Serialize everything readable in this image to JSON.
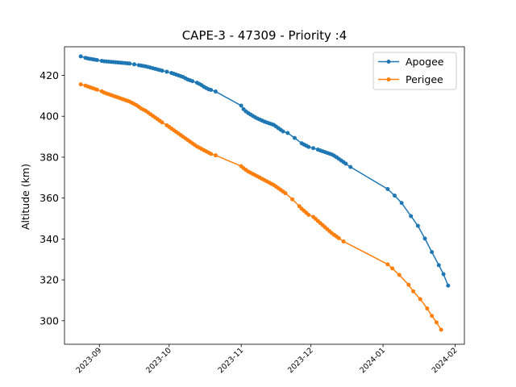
{
  "chart_data": {
    "type": "line",
    "title": "CAPE-3 - 47309 - Priority :4",
    "xlabel": "",
    "ylabel": "Altitude (km)",
    "xlim": [
      "2023-08-17",
      "2024-02-05"
    ],
    "ylim": [
      288.5,
      434
    ],
    "x_ticks": [
      "2023-09",
      "2023-10",
      "2023-11",
      "2023-12",
      "2024-01",
      "2024-02"
    ],
    "y_ticks": [
      300,
      320,
      340,
      360,
      380,
      400,
      420
    ],
    "grid": false,
    "legend_position": "upper right",
    "series": [
      {
        "name": "Apogee",
        "color": "#1f77b4",
        "points": [
          [
            "2023-08-24",
            429.3
          ],
          [
            "2023-08-26",
            428.6
          ],
          [
            "2023-08-27",
            428.3
          ],
          [
            "2023-08-28",
            428.1
          ],
          [
            "2023-08-29",
            427.9
          ],
          [
            "2023-08-30",
            427.7
          ],
          [
            "2023-08-31",
            427.5
          ],
          [
            "2023-09-02",
            427.1
          ],
          [
            "2023-09-03",
            426.9
          ],
          [
            "2023-09-04",
            426.8
          ],
          [
            "2023-09-05",
            426.7
          ],
          [
            "2023-09-06",
            426.6
          ],
          [
            "2023-09-07",
            426.5
          ],
          [
            "2023-09-08",
            426.4
          ],
          [
            "2023-09-09",
            426.3
          ],
          [
            "2023-09-10",
            426.2
          ],
          [
            "2023-09-11",
            426.1
          ],
          [
            "2023-09-12",
            426.0
          ],
          [
            "2023-09-13",
            425.9
          ],
          [
            "2023-09-14",
            425.8
          ],
          [
            "2023-09-16",
            425.4
          ],
          [
            "2023-09-18",
            425.0
          ],
          [
            "2023-09-19",
            424.8
          ],
          [
            "2023-09-20",
            424.6
          ],
          [
            "2023-09-21",
            424.4
          ],
          [
            "2023-09-22",
            424.1
          ],
          [
            "2023-09-23",
            423.8
          ],
          [
            "2023-09-24",
            423.5
          ],
          [
            "2023-09-25",
            423.2
          ],
          [
            "2023-09-26",
            422.9
          ],
          [
            "2023-09-27",
            422.6
          ],
          [
            "2023-09-28",
            422.3
          ],
          [
            "2023-09-30",
            421.8
          ],
          [
            "2023-10-02",
            421.2
          ],
          [
            "2023-10-03",
            420.8
          ],
          [
            "2023-10-04",
            420.4
          ],
          [
            "2023-10-05",
            420.0
          ],
          [
            "2023-10-06",
            419.6
          ],
          [
            "2023-10-07",
            419.2
          ],
          [
            "2023-10-08",
            418.6
          ],
          [
            "2023-10-09",
            418.0
          ],
          [
            "2023-10-10",
            417.6
          ],
          [
            "2023-10-11",
            417.2
          ],
          [
            "2023-10-13",
            416.4
          ],
          [
            "2023-10-14",
            415.8
          ],
          [
            "2023-10-15",
            415.2
          ],
          [
            "2023-10-16",
            414.4
          ],
          [
            "2023-10-17",
            413.8
          ],
          [
            "2023-10-18",
            413.2
          ],
          [
            "2023-10-19",
            412.9
          ],
          [
            "2023-10-21",
            412.1
          ],
          [
            "2023-11-01",
            405.2
          ],
          [
            "2023-11-02",
            403.5
          ],
          [
            "2023-11-03",
            402.4
          ],
          [
            "2023-11-04",
            401.6
          ],
          [
            "2023-11-05",
            400.9
          ],
          [
            "2023-11-06",
            400.2
          ],
          [
            "2023-11-07",
            399.5
          ],
          [
            "2023-11-08",
            398.9
          ],
          [
            "2023-11-09",
            398.4
          ],
          [
            "2023-11-10",
            397.9
          ],
          [
            "2023-11-11",
            397.4
          ],
          [
            "2023-11-12",
            397.0
          ],
          [
            "2023-11-13",
            396.6
          ],
          [
            "2023-11-14",
            396.2
          ],
          [
            "2023-11-15",
            395.8
          ],
          [
            "2023-11-16",
            395.0
          ],
          [
            "2023-11-17",
            394.2
          ],
          [
            "2023-11-18",
            393.4
          ],
          [
            "2023-11-19",
            392.6
          ],
          [
            "2023-11-21",
            391.8
          ],
          [
            "2023-11-24",
            389.4
          ],
          [
            "2023-11-27",
            386.8
          ],
          [
            "2023-11-28",
            386.2
          ],
          [
            "2023-11-29",
            385.6
          ],
          [
            "2023-11-30",
            385.0
          ],
          [
            "2023-12-02",
            384.4
          ],
          [
            "2023-12-04",
            383.7
          ],
          [
            "2023-12-05",
            383.3
          ],
          [
            "2023-12-06",
            382.9
          ],
          [
            "2023-12-07",
            382.5
          ],
          [
            "2023-12-08",
            382.1
          ],
          [
            "2023-12-09",
            381.7
          ],
          [
            "2023-12-10",
            381.3
          ],
          [
            "2023-12-11",
            380.7
          ],
          [
            "2023-12-12",
            380.0
          ],
          [
            "2023-12-13",
            379.2
          ],
          [
            "2023-12-14",
            378.4
          ],
          [
            "2023-12-15",
            377.6
          ],
          [
            "2023-12-16",
            376.8
          ],
          [
            "2023-12-18",
            375.2
          ],
          [
            "2024-01-03",
            364.4
          ],
          [
            "2024-01-06",
            361.2
          ],
          [
            "2024-01-09",
            357.6
          ],
          [
            "2024-01-13",
            351.2
          ],
          [
            "2024-01-16",
            346.4
          ],
          [
            "2024-01-19",
            340.2
          ],
          [
            "2024-01-22",
            333.6
          ],
          [
            "2024-01-25",
            327.2
          ],
          [
            "2024-01-27",
            322.8
          ],
          [
            "2024-01-29",
            317.2
          ]
        ]
      },
      {
        "name": "Perigee",
        "color": "#ff7f0e",
        "points": [
          [
            "2023-08-24",
            415.6
          ],
          [
            "2023-08-26",
            415.0
          ],
          [
            "2023-08-27",
            414.6
          ],
          [
            "2023-08-28",
            414.2
          ],
          [
            "2023-08-29",
            413.8
          ],
          [
            "2023-08-30",
            413.4
          ],
          [
            "2023-08-31",
            413.0
          ],
          [
            "2023-09-02",
            412.2
          ],
          [
            "2023-09-03",
            411.6
          ],
          [
            "2023-09-04",
            411.2
          ],
          [
            "2023-09-05",
            410.8
          ],
          [
            "2023-09-06",
            410.4
          ],
          [
            "2023-09-07",
            410.0
          ],
          [
            "2023-09-08",
            409.6
          ],
          [
            "2023-09-09",
            409.2
          ],
          [
            "2023-09-10",
            408.8
          ],
          [
            "2023-09-11",
            408.4
          ],
          [
            "2023-09-12",
            408.0
          ],
          [
            "2023-09-13",
            407.6
          ],
          [
            "2023-09-14",
            407.2
          ],
          [
            "2023-09-15",
            406.6
          ],
          [
            "2023-09-16",
            406.0
          ],
          [
            "2023-09-17",
            405.4
          ],
          [
            "2023-09-18",
            404.6
          ],
          [
            "2023-09-19",
            403.8
          ],
          [
            "2023-09-20",
            403.2
          ],
          [
            "2023-09-21",
            402.6
          ],
          [
            "2023-09-22",
            401.8
          ],
          [
            "2023-09-23",
            401.0
          ],
          [
            "2023-09-24",
            400.2
          ],
          [
            "2023-09-25",
            399.4
          ],
          [
            "2023-09-26",
            398.6
          ],
          [
            "2023-09-27",
            397.8
          ],
          [
            "2023-09-28",
            397.0
          ],
          [
            "2023-09-30",
            395.6
          ],
          [
            "2023-10-01",
            394.8
          ],
          [
            "2023-10-02",
            394.0
          ],
          [
            "2023-10-03",
            393.2
          ],
          [
            "2023-10-04",
            392.4
          ],
          [
            "2023-10-05",
            391.6
          ],
          [
            "2023-10-06",
            390.8
          ],
          [
            "2023-10-07",
            390.0
          ],
          [
            "2023-10-08",
            389.2
          ],
          [
            "2023-10-09",
            388.4
          ],
          [
            "2023-10-10",
            387.6
          ],
          [
            "2023-10-11",
            386.8
          ],
          [
            "2023-10-12",
            386.0
          ],
          [
            "2023-10-13",
            385.2
          ],
          [
            "2023-10-14",
            384.6
          ],
          [
            "2023-10-15",
            384.0
          ],
          [
            "2023-10-16",
            383.4
          ],
          [
            "2023-10-17",
            382.8
          ],
          [
            "2023-10-18",
            382.2
          ],
          [
            "2023-10-19",
            381.6
          ],
          [
            "2023-10-21",
            380.9
          ],
          [
            "2023-11-01",
            375.6
          ],
          [
            "2023-11-02",
            374.6
          ],
          [
            "2023-11-03",
            373.8
          ],
          [
            "2023-11-04",
            373.0
          ],
          [
            "2023-11-05",
            372.4
          ],
          [
            "2023-11-06",
            371.8
          ],
          [
            "2023-11-07",
            371.2
          ],
          [
            "2023-11-08",
            370.6
          ],
          [
            "2023-11-09",
            370.0
          ],
          [
            "2023-11-10",
            369.4
          ],
          [
            "2023-11-11",
            368.8
          ],
          [
            "2023-11-12",
            368.2
          ],
          [
            "2023-11-13",
            367.6
          ],
          [
            "2023-11-14",
            367.0
          ],
          [
            "2023-11-15",
            366.4
          ],
          [
            "2023-11-16",
            365.6
          ],
          [
            "2023-11-17",
            364.8
          ],
          [
            "2023-11-18",
            364.0
          ],
          [
            "2023-11-19",
            363.2
          ],
          [
            "2023-11-20",
            362.4
          ],
          [
            "2023-11-23",
            359.4
          ],
          [
            "2023-11-26",
            356.0
          ],
          [
            "2023-11-27",
            354.8
          ],
          [
            "2023-11-28",
            353.8
          ],
          [
            "2023-11-29",
            352.8
          ],
          [
            "2023-11-30",
            351.8
          ],
          [
            "2023-12-02",
            350.8
          ],
          [
            "2023-12-03",
            349.8
          ],
          [
            "2023-12-04",
            348.8
          ],
          [
            "2023-12-05",
            347.8
          ],
          [
            "2023-12-06",
            346.8
          ],
          [
            "2023-12-07",
            345.8
          ],
          [
            "2023-12-08",
            344.8
          ],
          [
            "2023-12-09",
            343.8
          ],
          [
            "2023-12-10",
            342.8
          ],
          [
            "2023-12-11",
            342.0
          ],
          [
            "2023-12-12",
            341.2
          ],
          [
            "2023-12-13",
            340.4
          ],
          [
            "2023-12-15",
            338.8
          ],
          [
            "2024-01-03",
            327.6
          ],
          [
            "2024-01-05",
            325.6
          ],
          [
            "2024-01-08",
            322.4
          ],
          [
            "2024-01-12",
            317.6
          ],
          [
            "2024-01-14",
            314.4
          ],
          [
            "2024-01-17",
            310.6
          ],
          [
            "2024-01-20",
            306.0
          ],
          [
            "2024-01-22",
            302.4
          ],
          [
            "2024-01-24",
            299.2
          ],
          [
            "2024-01-26",
            295.6
          ]
        ]
      }
    ]
  }
}
